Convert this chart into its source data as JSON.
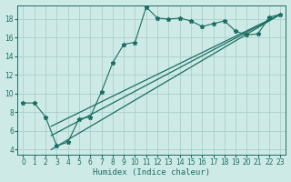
{
  "title": "",
  "xlabel": "Humidex (Indice chaleur)",
  "ylabel": "",
  "xlim": [
    -0.5,
    23.5
  ],
  "ylim": [
    3.5,
    19.5
  ],
  "yticks": [
    4,
    6,
    8,
    10,
    12,
    14,
    16,
    18
  ],
  "xticks": [
    0,
    1,
    2,
    3,
    4,
    5,
    6,
    7,
    8,
    9,
    10,
    11,
    12,
    13,
    14,
    15,
    16,
    17,
    18,
    19,
    20,
    21,
    22,
    23
  ],
  "bg_color": "#ceeae6",
  "line_color": "#1a6e62",
  "grid_color": "#aacfcb",
  "scatter_x": [
    0,
    1,
    2,
    3,
    4,
    5,
    6,
    7,
    8,
    9,
    10,
    11,
    12,
    13,
    14,
    15,
    16,
    17,
    18,
    19,
    20,
    21,
    22,
    23
  ],
  "scatter_y": [
    9.0,
    9.0,
    7.5,
    4.4,
    4.8,
    7.3,
    7.5,
    10.2,
    13.3,
    15.3,
    15.5,
    19.3,
    18.1,
    18.0,
    18.1,
    17.8,
    17.2,
    17.5,
    17.8,
    16.7,
    16.3,
    16.4,
    18.2,
    18.5
  ],
  "line1_x": [
    2.5,
    23
  ],
  "line1_y": [
    4.0,
    18.5
  ],
  "line2_x": [
    2.5,
    23
  ],
  "line2_y": [
    5.5,
    18.5
  ],
  "line3_x": [
    2.5,
    23
  ],
  "line3_y": [
    6.5,
    18.5
  ]
}
